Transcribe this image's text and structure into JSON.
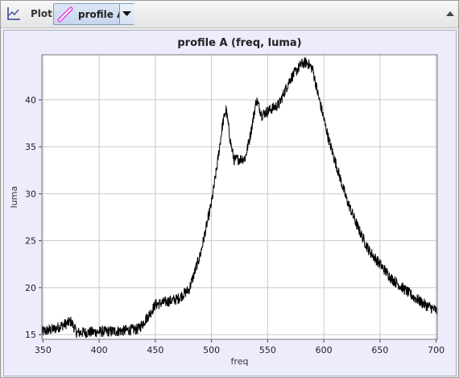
{
  "toolbar": {
    "plot_label": "Plot",
    "icon": "plot-icon",
    "selected_profile": "profile A",
    "profile_icon": "profile-line-icon",
    "dropdown_icon": "chevron-down-icon",
    "collapse_icon": "collapse-up-icon"
  },
  "colors": {
    "plot_background": "#ffffff",
    "panel_background": "#ececfc",
    "line": "#000000",
    "grid": "#c8c8c8",
    "profile_icon": "#e040e0"
  },
  "chart_data": {
    "type": "line",
    "title": "profile A (freq, luma)",
    "xlabel": "freq",
    "ylabel": "luma",
    "xlim": [
      349,
      701
    ],
    "ylim": [
      14.5,
      44.8
    ],
    "xticks": [
      350,
      400,
      450,
      500,
      550,
      600,
      650,
      700
    ],
    "yticks": [
      15,
      20,
      25,
      30,
      35,
      40
    ],
    "grid": true,
    "noise_amplitude": 1.2,
    "series": [
      {
        "x": [
          349,
          360,
          375,
          380,
          400,
          420,
          435,
          445,
          450,
          460,
          470,
          480,
          490,
          500,
          505,
          510,
          513,
          517,
          520,
          530,
          535,
          540,
          545,
          550,
          560,
          570,
          580,
          585,
          590,
          595,
          600,
          605,
          610,
          620,
          630,
          640,
          650,
          660,
          670,
          680,
          690,
          701
        ],
        "y": [
          15.3,
          15.6,
          16.4,
          15.2,
          15.3,
          15.4,
          15.6,
          17.2,
          18.2,
          18.5,
          18.8,
          19.8,
          23.5,
          29.0,
          33.0,
          37.5,
          39.0,
          35.5,
          33.6,
          33.8,
          36.5,
          40.0,
          38.4,
          38.8,
          39.5,
          42.2,
          43.8,
          44.0,
          43.3,
          40.5,
          38.0,
          35.5,
          33.5,
          29.5,
          26.5,
          24.0,
          22.5,
          21.0,
          20.0,
          19.0,
          18.2,
          17.5
        ]
      }
    ]
  }
}
